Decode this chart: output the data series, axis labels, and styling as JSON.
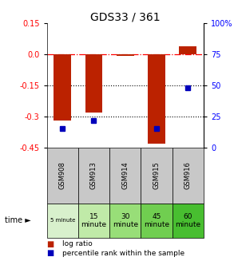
{
  "title": "GDS33 / 361",
  "samples": [
    "GSM908",
    "GSM913",
    "GSM914",
    "GSM915",
    "GSM916"
  ],
  "time_labels": [
    "5 minute",
    "15\nminute",
    "30\nminute",
    "45\nminute",
    "60\nminute"
  ],
  "time_colors_5min": "#d8f0cc",
  "time_colors": [
    "#d8f0cc",
    "#c0eaa8",
    "#98de78",
    "#70ce50",
    "#48be30"
  ],
  "gsm_color": "#c8c8c8",
  "log_ratios": [
    -0.32,
    -0.28,
    -0.005,
    -0.43,
    0.04
  ],
  "percentile_ranks": [
    15,
    22,
    null,
    15,
    48
  ],
  "ylim_left": [
    -0.45,
    0.15
  ],
  "ylim_right": [
    0,
    100
  ],
  "left_ticks": [
    0.15,
    0.0,
    -0.15,
    -0.3,
    -0.45
  ],
  "right_ticks": [
    100,
    75,
    50,
    25,
    0
  ],
  "right_tick_labels": [
    "100%",
    "75",
    "50",
    "25",
    "0"
  ],
  "bar_color": "#bb2200",
  "dot_color": "#0000bb",
  "dotted_lines": [
    -0.15,
    -0.3
  ],
  "bar_width": 0.55
}
